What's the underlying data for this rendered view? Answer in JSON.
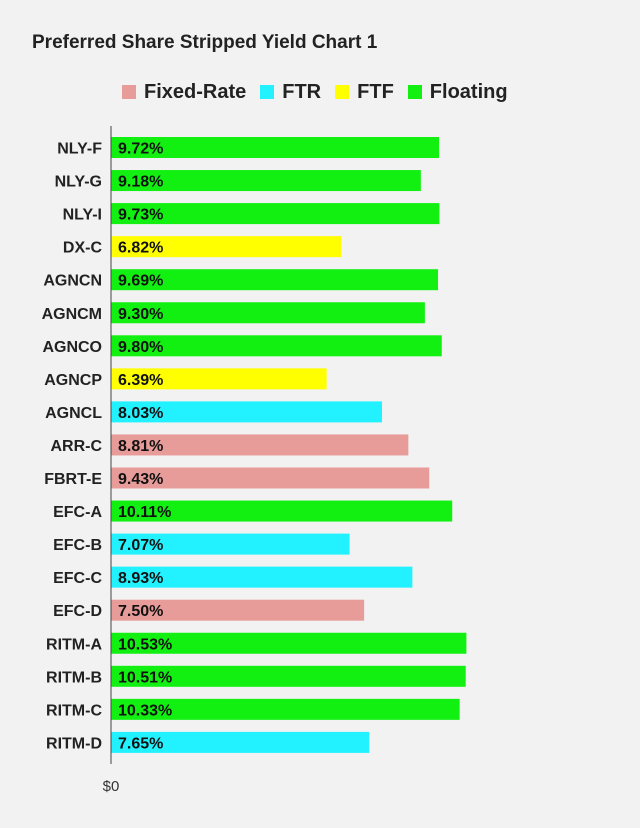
{
  "title": "Preferred Share Stripped Yield Chart 1",
  "colors": {
    "Fixed-Rate": "#e89c99",
    "FTR": "#22f2ff",
    "FTF": "#ffff00",
    "Floating": "#11f011"
  },
  "chart_data": {
    "type": "bar",
    "orientation": "horizontal",
    "title": "Preferred Share Stripped Yield Chart 1",
    "legend": [
      "Fixed-Rate",
      "FTR",
      "FTF",
      "Floating"
    ],
    "legend_position": "top",
    "x_tick_labels": [
      "$0"
    ],
    "xlim": [
      0,
      12
    ],
    "grid": false,
    "categories": [
      "NLY-F",
      "NLY-G",
      "NLY-I",
      "DX-C",
      "AGNCN",
      "AGNCM",
      "AGNCO",
      "AGNCP",
      "AGNCL",
      "ARR-C",
      "FBRT-E",
      "EFC-A",
      "EFC-B",
      "EFC-C",
      "EFC-D",
      "RITM-A",
      "RITM-B",
      "RITM-C",
      "RITM-D"
    ],
    "values": [
      9.72,
      9.18,
      9.73,
      6.82,
      9.69,
      9.3,
      9.8,
      6.39,
      8.03,
      8.81,
      9.43,
      10.11,
      7.07,
      8.93,
      7.5,
      10.53,
      10.51,
      10.33,
      7.65
    ],
    "value_labels": [
      "9.72%",
      "9.18%",
      "9.73%",
      "6.82%",
      "9.69%",
      "9.30%",
      "9.80%",
      "6.39%",
      "8.03%",
      "8.81%",
      "9.43%",
      "10.11%",
      "7.07%",
      "8.93%",
      "7.50%",
      "10.53%",
      "10.51%",
      "10.33%",
      "7.65%"
    ],
    "types": [
      "Floating",
      "Floating",
      "Floating",
      "FTF",
      "Floating",
      "Floating",
      "Floating",
      "FTF",
      "FTR",
      "Fixed-Rate",
      "Fixed-Rate",
      "Floating",
      "FTR",
      "FTR",
      "Fixed-Rate",
      "Floating",
      "Floating",
      "Floating",
      "FTR"
    ]
  }
}
